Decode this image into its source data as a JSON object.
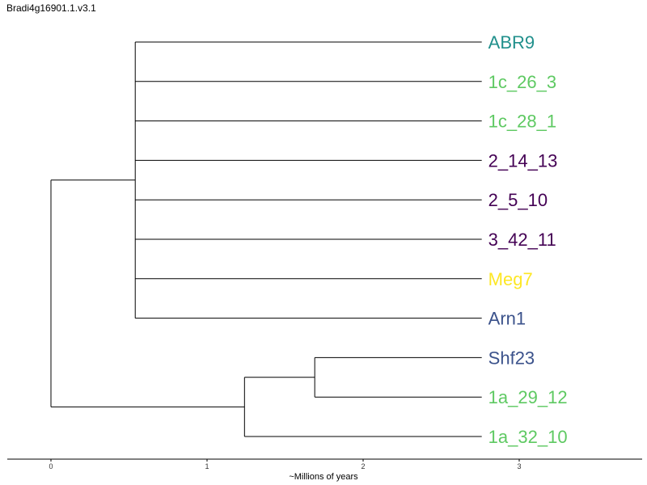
{
  "title": "Bradi4g16901.1.v3.1",
  "axis": {
    "label": "~Millions of years",
    "ticks": [
      "0",
      "1",
      "2",
      "3"
    ]
  },
  "tree": {
    "tips": [
      {
        "name": "ABR9",
        "color": "#21908c"
      },
      {
        "name": "1c_26_3",
        "color": "#5ec962"
      },
      {
        "name": "1c_28_1",
        "color": "#5ec962"
      },
      {
        "name": "2_14_13",
        "color": "#440154"
      },
      {
        "name": "2_5_10",
        "color": "#440154"
      },
      {
        "name": "3_42_11",
        "color": "#440154"
      },
      {
        "name": "Meg7",
        "color": "#fde725"
      },
      {
        "name": "Arn1",
        "color": "#3b528b"
      },
      {
        "name": "Shf23",
        "color": "#3b528b"
      },
      {
        "name": "1a_29_12",
        "color": "#5ec962"
      },
      {
        "name": "1a_32_10",
        "color": "#5ec962"
      }
    ],
    "nodes": {
      "root": 0,
      "clade_a": 0.54,
      "clade_b": 1.24,
      "clade_c": 1.69
    },
    "tip_depth": 2.76
  }
}
